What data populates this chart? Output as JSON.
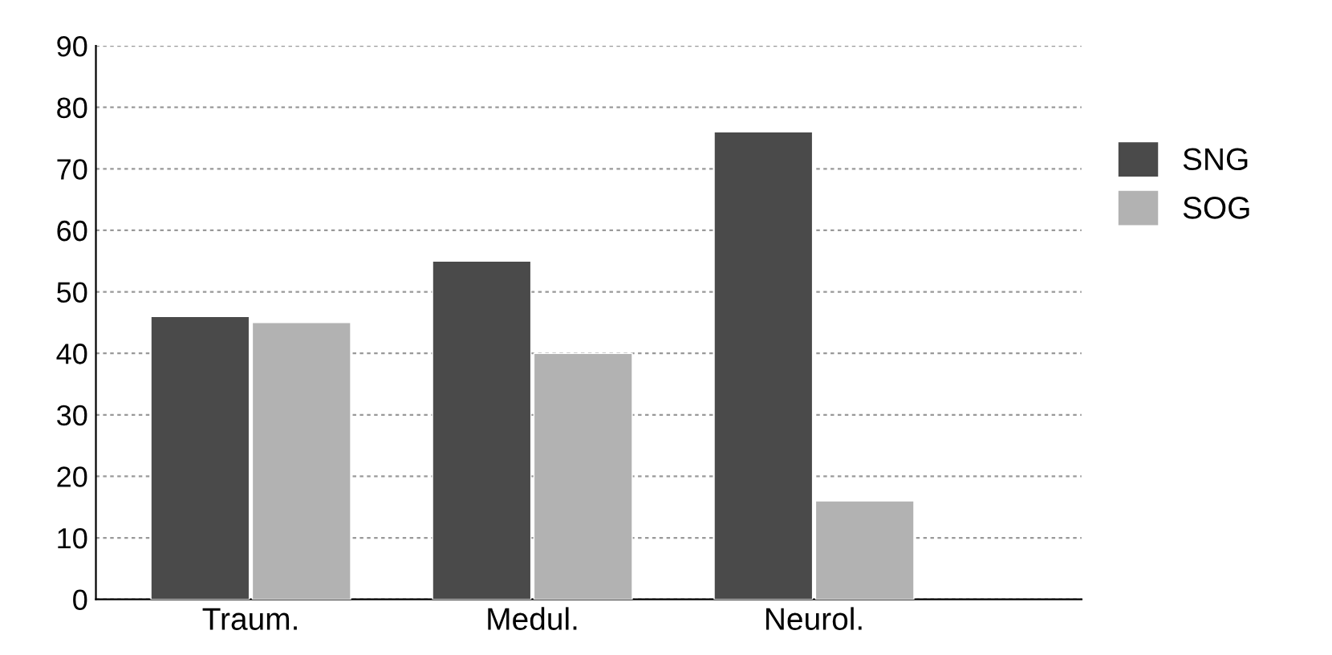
{
  "chart_data": {
    "type": "bar",
    "categories": [
      "Traum.",
      "Medul.",
      "Neurol."
    ],
    "series": [
      {
        "name": "SNG",
        "color": "#4a4a4a",
        "values": [
          46,
          55,
          76
        ]
      },
      {
        "name": "SOG",
        "color": "#b2b2b2",
        "values": [
          45,
          40,
          16
        ]
      }
    ],
    "ylim": [
      0,
      90
    ],
    "yticks": [
      0,
      10,
      20,
      30,
      40,
      50,
      60,
      70,
      80,
      90
    ],
    "grid": "y",
    "legend": "right"
  }
}
